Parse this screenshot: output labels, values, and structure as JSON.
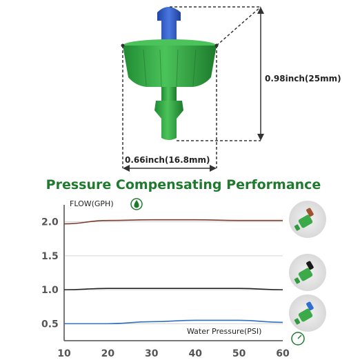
{
  "product": {
    "height_label": "0.98inch(25mm)",
    "width_label": "0.66inch(16.8mm)",
    "body_color": "#3daa4a",
    "cap_color": "#2f5fc9"
  },
  "chart_data": {
    "type": "line",
    "title": "Pressure Compensating Performance",
    "ylabel": "FLOW(GPH)",
    "xlabel": "Water Pressure(PSI)",
    "xlim": [
      10,
      60
    ],
    "ylim": [
      0.25,
      2.25
    ],
    "x_ticks": [
      10,
      20,
      30,
      40,
      50,
      60
    ],
    "y_ticks": [
      0.5,
      1.0,
      1.5,
      2.0
    ],
    "x_tick_labels": [
      "10",
      "20",
      "30",
      "40",
      "50",
      "60"
    ],
    "y_tick_labels": [
      "0.5",
      "1.0",
      "1.5",
      "2.0"
    ],
    "grid": true,
    "series": [
      {
        "color": "#7a3a2a",
        "marker": "brown-emitter-icon",
        "x": [
          10,
          20,
          30,
          40,
          50,
          60
        ],
        "values": [
          1.97,
          2.02,
          2.03,
          2.03,
          2.02,
          2.02
        ]
      },
      {
        "color": "#222222",
        "marker": "black-emitter-icon",
        "x": [
          10,
          20,
          30,
          40,
          50,
          60
        ],
        "values": [
          1.0,
          1.02,
          1.02,
          1.02,
          1.02,
          1.0
        ]
      },
      {
        "color": "#2f6fc0",
        "marker": "blue-emitter-icon",
        "x": [
          10,
          20,
          30,
          40,
          50,
          60
        ],
        "values": [
          0.5,
          0.5,
          0.53,
          0.55,
          0.55,
          0.52
        ]
      }
    ]
  }
}
